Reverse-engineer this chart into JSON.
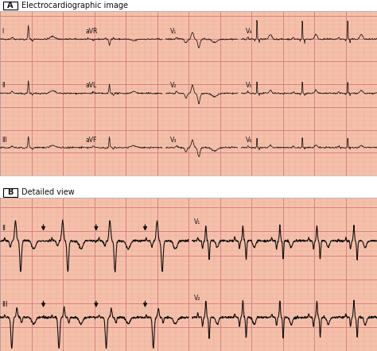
{
  "title_a": "Electrocardiographic image",
  "title_b": "Detailed view",
  "bg_color": "#f5c0aa",
  "grid_major_color": "#d98080",
  "grid_minor_color": "#eaaa9a",
  "trace_color": "#111111",
  "panel_bg": "#ffffff",
  "label_color": "#111111",
  "font_size_label": 6.5,
  "font_size_title": 7.0,
  "font_size_lead": 5.5
}
